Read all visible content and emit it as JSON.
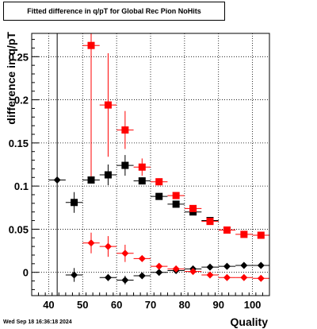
{
  "chart_data": {
    "type": "scatter",
    "title": "Fitted difference in q/pT for Global Rec Pion NoHits",
    "xlabel": "Quality",
    "ylabel": "difference in q/pT",
    "xlim": [
      35,
      105
    ],
    "ylim": [
      -0.027,
      0.277
    ],
    "x_ticks": [
      40,
      50,
      60,
      70,
      80,
      90,
      100
    ],
    "y_ticks": [
      0,
      0.05,
      0.1,
      0.15,
      0.2,
      0.25
    ],
    "y_tick_labels": [
      "0",
      "0.05",
      "0.1",
      "0.15",
      "0.2",
      "0.25"
    ],
    "grid": true,
    "series": [
      {
        "marker": "square",
        "color": "#000000",
        "points": [
          {
            "x": 47.5,
            "y": 0.081,
            "yerr": 0.012
          },
          {
            "x": 52.5,
            "y": 0.107,
            "yerr": 0.004
          },
          {
            "x": 57.5,
            "y": 0.113,
            "yerr": 0.012
          },
          {
            "x": 62.5,
            "y": 0.124,
            "yerr": 0.012
          },
          {
            "x": 67.5,
            "y": 0.106,
            "yerr": 0.004
          },
          {
            "x": 72.5,
            "y": 0.088,
            "yerr": 0.003
          },
          {
            "x": 77.5,
            "y": 0.079,
            "yerr": 0.002
          },
          {
            "x": 82.5,
            "y": 0.07,
            "yerr": 0.002
          },
          {
            "x": 87.5,
            "y": 0.06,
            "yerr": 0.002
          }
        ]
      },
      {
        "marker": "square",
        "color": "#ff0000",
        "points": [
          {
            "x": 52.5,
            "y": 0.263,
            "yerr": 0.16
          },
          {
            "x": 57.5,
            "y": 0.194,
            "yerr": 0.06
          },
          {
            "x": 62.5,
            "y": 0.165,
            "yerr": 0.022
          },
          {
            "x": 67.5,
            "y": 0.122,
            "yerr": 0.01
          },
          {
            "x": 72.5,
            "y": 0.105,
            "yerr": 0.004
          },
          {
            "x": 77.5,
            "y": 0.089,
            "yerr": 0.003
          },
          {
            "x": 82.5,
            "y": 0.074,
            "yerr": 0.003
          },
          {
            "x": 87.5,
            "y": 0.059,
            "yerr": 0.002
          },
          {
            "x": 92.5,
            "y": 0.049,
            "yerr": 0.002
          },
          {
            "x": 97.5,
            "y": 0.044,
            "yerr": 0.002
          },
          {
            "x": 102.5,
            "y": 0.043,
            "yerr": 0.002
          }
        ]
      },
      {
        "marker": "diamond",
        "color": "#000000",
        "points": [
          {
            "x": 42.5,
            "y": 0.107,
            "yerr": 0.24
          },
          {
            "x": 47.5,
            "y": -0.003,
            "yerr": 0.008
          },
          {
            "x": 52.5,
            "y": 0.107,
            "yerr": 0.002
          },
          {
            "x": 57.5,
            "y": -0.006,
            "yerr": 0.004
          },
          {
            "x": 62.5,
            "y": -0.009,
            "yerr": 0.005
          },
          {
            "x": 67.5,
            "y": -0.004,
            "yerr": 0.003
          },
          {
            "x": 72.5,
            "y": 0.0,
            "yerr": 0.002
          },
          {
            "x": 77.5,
            "y": 0.002,
            "yerr": 0.001
          },
          {
            "x": 82.5,
            "y": 0.004,
            "yerr": 0.001
          },
          {
            "x": 87.5,
            "y": 0.006,
            "yerr": 0.001
          },
          {
            "x": 92.5,
            "y": 0.007,
            "yerr": 0.001
          },
          {
            "x": 97.5,
            "y": 0.008,
            "yerr": 0.001
          },
          {
            "x": 102.5,
            "y": 0.008,
            "yerr": 0.001
          }
        ]
      },
      {
        "marker": "diamond",
        "color": "#ff0000",
        "points": [
          {
            "x": 52.5,
            "y": 0.034,
            "yerr": 0.012
          },
          {
            "x": 57.5,
            "y": 0.03,
            "yerr": 0.012
          },
          {
            "x": 62.5,
            "y": 0.022,
            "yerr": 0.01
          },
          {
            "x": 67.5,
            "y": 0.016,
            "yerr": 0.003
          },
          {
            "x": 72.5,
            "y": 0.007,
            "yerr": 0.002
          },
          {
            "x": 77.5,
            "y": 0.004,
            "yerr": 0.002
          },
          {
            "x": 82.5,
            "y": 0.001,
            "yerr": 0.001
          },
          {
            "x": 87.5,
            "y": -0.003,
            "yerr": 0.001
          },
          {
            "x": 92.5,
            "y": -0.006,
            "yerr": 0.001
          },
          {
            "x": 97.5,
            "y": -0.006,
            "yerr": 0.001
          },
          {
            "x": 102.5,
            "y": -0.007,
            "yerr": 0.001
          }
        ]
      }
    ]
  },
  "footer": {
    "timestamp": "Wed Sep 18 16:36:18 2024"
  }
}
